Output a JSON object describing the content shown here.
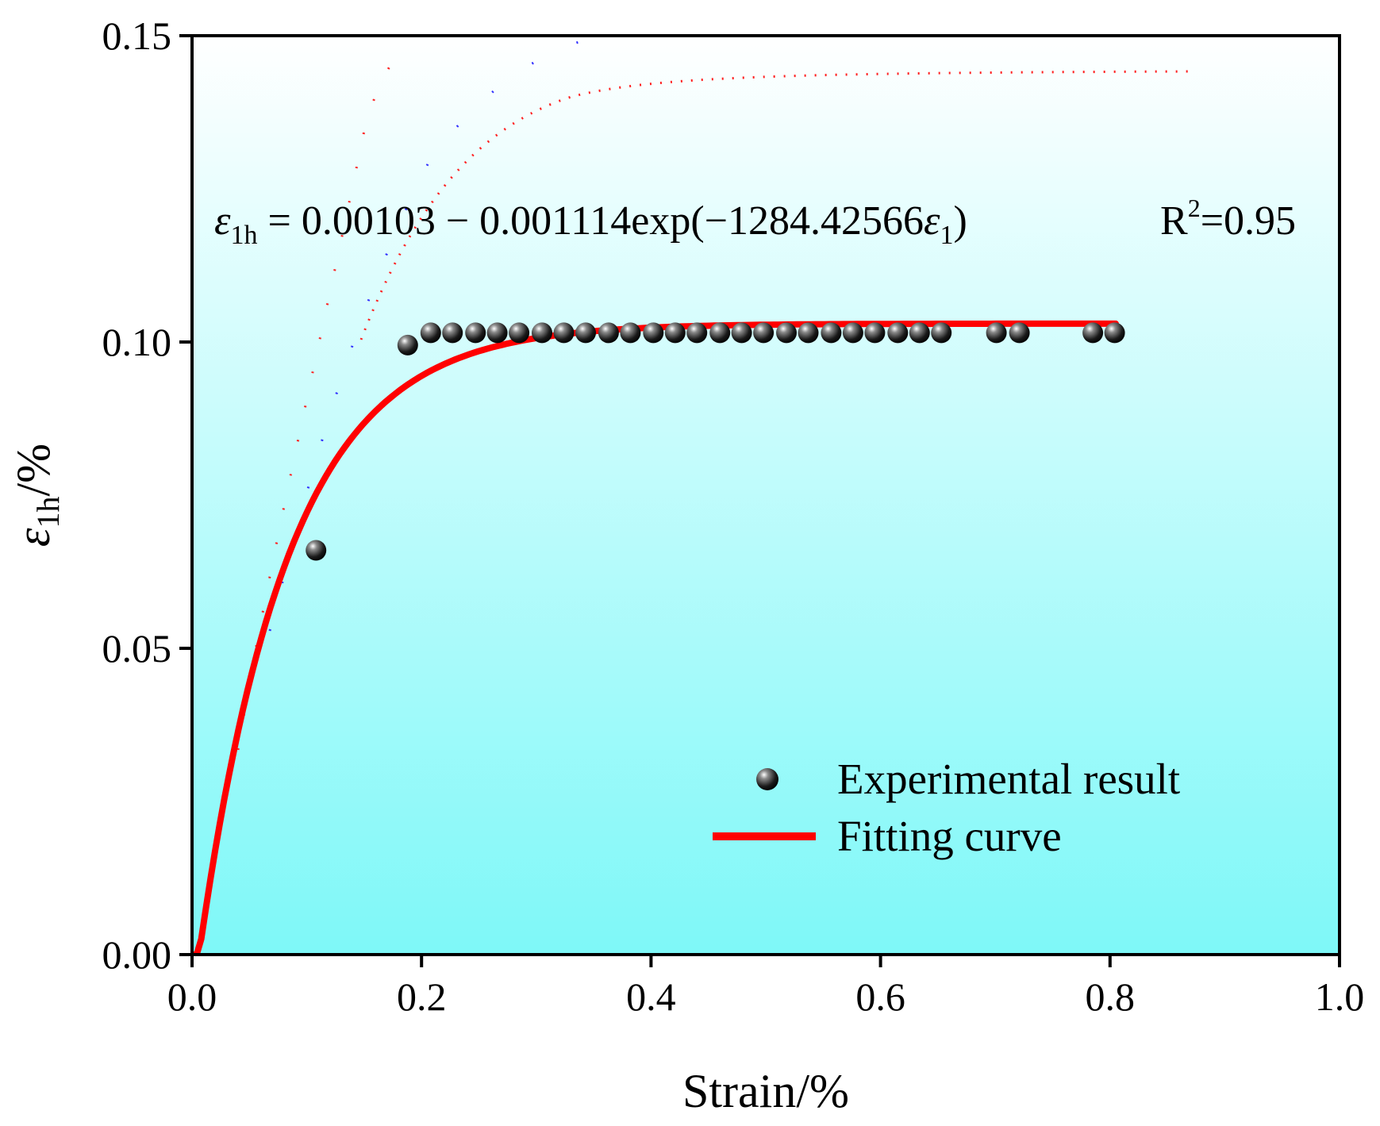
{
  "chart_data": {
    "type": "scatter",
    "xlabel": "Strain/%",
    "ylabel_main": "ε",
    "ylabel_sub": "1h",
    "ylabel_rest": "/%",
    "xlim": [
      0.0,
      1.0
    ],
    "ylim": [
      0.0,
      0.15
    ],
    "x_ticks": [
      "0.0",
      "0.2",
      "0.4",
      "0.6",
      "0.8",
      "1.0"
    ],
    "y_ticks": [
      "0.00",
      "0.05",
      "0.10",
      "0.15"
    ],
    "grid": false,
    "legend_position": "lower-right",
    "equation": {
      "lhs_symbol": "ε",
      "lhs_sub": "1h",
      "rhs_main": " = 0.00103 − 0.001114exp(−1284.42566",
      "rhs_symbol": "ε",
      "rhs_sub": "1",
      "rhs_close": ")",
      "r2_label": "R",
      "r2_sup": "2",
      "r2_value": "=0.95"
    },
    "series": [
      {
        "name": "Experimental result",
        "kind": "scatter",
        "color": "#1a1a1a",
        "points": [
          [
            0.108,
            0.066
          ],
          [
            0.188,
            0.0995
          ],
          [
            0.208,
            0.1015
          ],
          [
            0.227,
            0.1015
          ],
          [
            0.247,
            0.1015
          ],
          [
            0.266,
            0.1015
          ],
          [
            0.285,
            0.1015
          ],
          [
            0.305,
            0.1015
          ],
          [
            0.324,
            0.1015
          ],
          [
            0.343,
            0.1015
          ],
          [
            0.363,
            0.1015
          ],
          [
            0.382,
            0.1015
          ],
          [
            0.402,
            0.1015
          ],
          [
            0.421,
            0.1015
          ],
          [
            0.44,
            0.1015
          ],
          [
            0.46,
            0.1015
          ],
          [
            0.479,
            0.1015
          ],
          [
            0.498,
            0.1015
          ],
          [
            0.518,
            0.1015
          ],
          [
            0.537,
            0.1015
          ],
          [
            0.557,
            0.1015
          ],
          [
            0.576,
            0.1015
          ],
          [
            0.595,
            0.1015
          ],
          [
            0.615,
            0.1015
          ],
          [
            0.634,
            0.1015
          ],
          [
            0.653,
            0.1015
          ],
          [
            0.701,
            0.1015
          ],
          [
            0.721,
            0.1015
          ],
          [
            0.785,
            0.1015
          ],
          [
            0.804,
            0.1015
          ]
        ]
      },
      {
        "name": "Fitting curve",
        "kind": "line",
        "color": "#ff0000",
        "x_start": 0.0,
        "x_end": 0.805,
        "model": {
          "a": 0.103,
          "b": 0.1114,
          "k": 12.8442566
        }
      }
    ],
    "background_gradient": {
      "top": "#ffffff",
      "bottom": "#7ef8f8"
    }
  }
}
